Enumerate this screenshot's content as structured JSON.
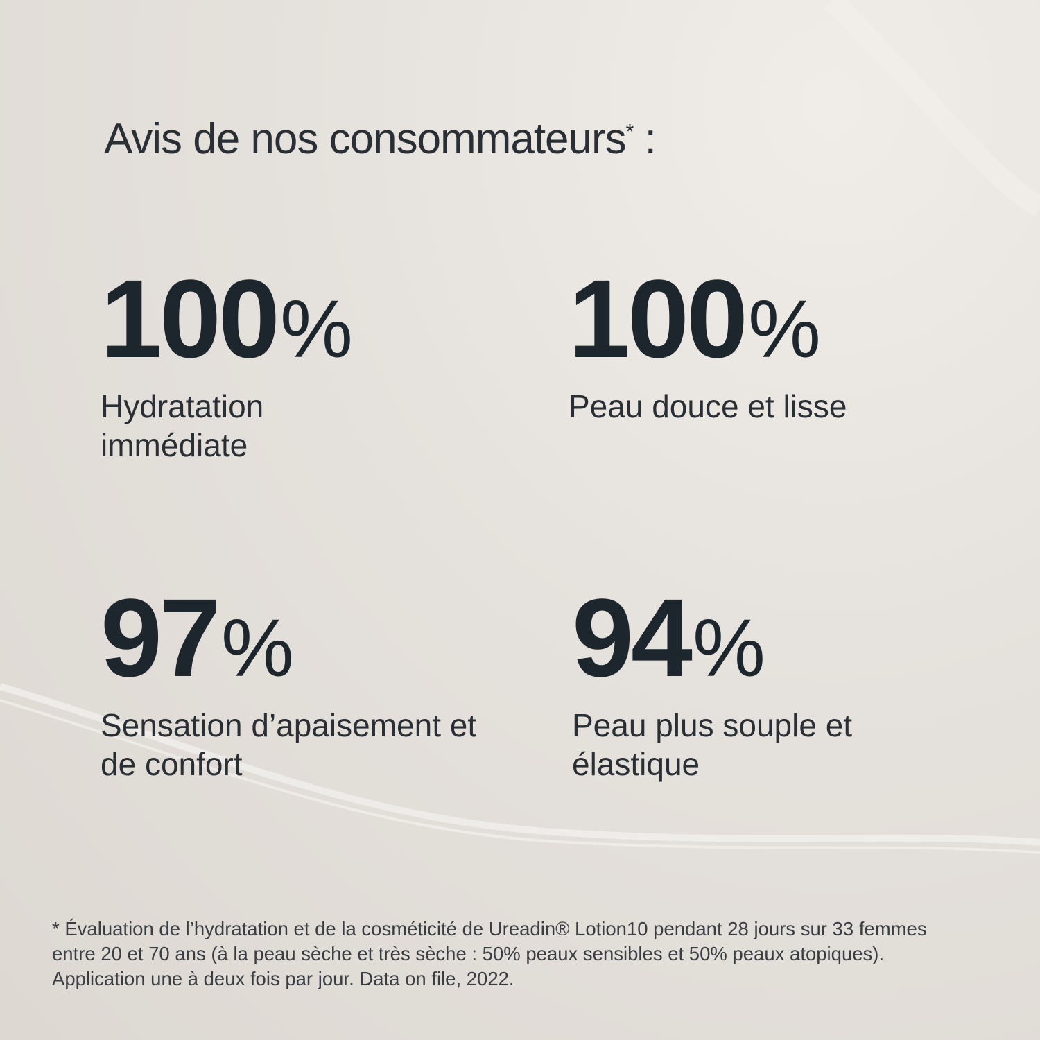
{
  "title": {
    "text": "Avis de nos consommateurs",
    "asterisk": "*",
    "suffix": " :"
  },
  "stats": [
    {
      "value": "100",
      "unit": "%",
      "label": "Hydratation immédiate"
    },
    {
      "value": "100",
      "unit": "%",
      "label": "Peau douce et lisse"
    },
    {
      "value": "97",
      "unit": "%",
      "label": "Sensation d’apaisement et de confort"
    },
    {
      "value": "94",
      "unit": "%",
      "label": "Peau plus souple et élastique"
    }
  ],
  "footnote": "* Évaluation de l’hydratation et de la cosméticité de Ureadin® Lotion10 pendant 28 jours sur 33 femmes entre 20 et 70 ans (à la peau sèche et très sèche : 50% peaux sensibles et 50% peaux atopiques). Application une à deux fois par jour. Data on file, 2022.",
  "colors": {
    "text": "#1d252d",
    "background": "#e5e1dc"
  }
}
